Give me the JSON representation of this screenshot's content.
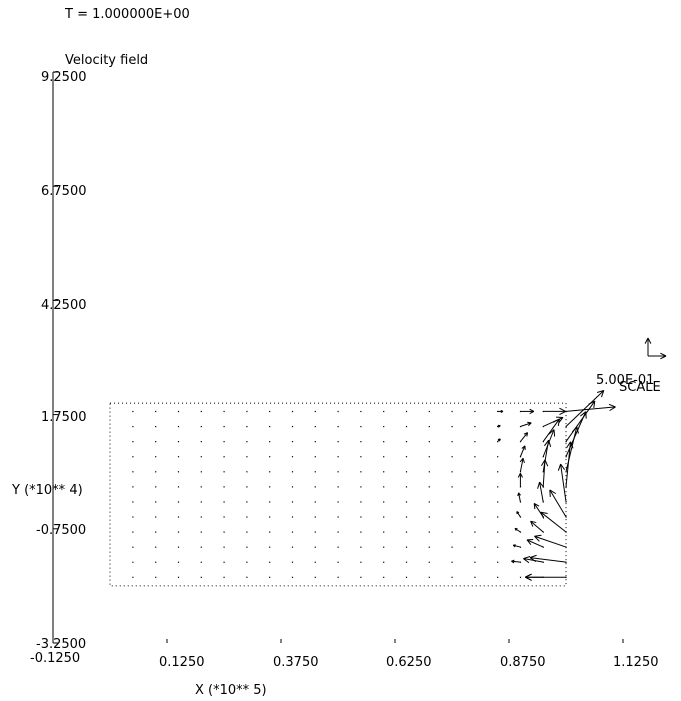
{
  "header": {
    "time_label": "T =  1.000000E+00"
  },
  "chart_data": {
    "type": "vector_field",
    "title": "Velocity field",
    "xlabel": "X (*10**  5)",
    "ylabel": "Y (*10**  4)",
    "xlim": [
      -0.125,
      1.125
    ],
    "ylim": [
      -3.25,
      9.25
    ],
    "x_ticks": [
      "-0.1250",
      "0.1250",
      "0.3750",
      "0.6250",
      "0.8750",
      "1.1250"
    ],
    "x_tick_values": [
      -0.125,
      0.125,
      0.375,
      0.625,
      0.875,
      1.125
    ],
    "y_ticks": [
      "9.2500",
      "6.7500",
      "4.2500",
      "1.7500",
      "-0.7500",
      "-3.2500"
    ],
    "y_tick_values": [
      9.25,
      6.75,
      4.25,
      1.75,
      -0.75,
      -3.25
    ],
    "domain": {
      "x": [
        0.0,
        1.0
      ],
      "y": [
        -2.0,
        2.0
      ]
    },
    "grid": {
      "nx": 20,
      "ny": 12,
      "x0": 0.05,
      "dx": 0.05,
      "y0": -1.81,
      "dy": 0.33
    },
    "scale": {
      "value_label": "5.00E-01",
      "label": "SCALE",
      "value": 0.5
    },
    "vectors": [
      {
        "x": 0.85,
        "y": 1.82,
        "u": 0.06,
        "v": 0.0
      },
      {
        "x": 0.9,
        "y": 1.82,
        "u": 0.15,
        "v": 0.0
      },
      {
        "x": 0.95,
        "y": 1.82,
        "u": 0.25,
        "v": 0.0
      },
      {
        "x": 1.0,
        "y": 1.82,
        "u": 0.55,
        "v": 0.05
      },
      {
        "x": 0.85,
        "y": 1.49,
        "u": 0.03,
        "v": 0.01
      },
      {
        "x": 0.9,
        "y": 1.49,
        "u": 0.12,
        "v": 0.04
      },
      {
        "x": 0.95,
        "y": 1.49,
        "u": 0.22,
        "v": 0.1
      },
      {
        "x": 1.0,
        "y": 1.49,
        "u": 0.42,
        "v": 0.4
      },
      {
        "x": 0.85,
        "y": 1.16,
        "u": 0.03,
        "v": 0.03
      },
      {
        "x": 0.9,
        "y": 1.16,
        "u": 0.08,
        "v": 0.1
      },
      {
        "x": 0.95,
        "y": 1.16,
        "u": 0.18,
        "v": 0.25
      },
      {
        "x": 1.0,
        "y": 1.16,
        "u": 0.32,
        "v": 0.45
      },
      {
        "x": 0.9,
        "y": 0.83,
        "u": 0.05,
        "v": 0.12
      },
      {
        "x": 0.95,
        "y": 0.83,
        "u": 0.12,
        "v": 0.3
      },
      {
        "x": 1.0,
        "y": 0.83,
        "u": 0.22,
        "v": 0.5
      },
      {
        "x": 0.9,
        "y": 0.5,
        "u": 0.03,
        "v": 0.15
      },
      {
        "x": 0.95,
        "y": 0.5,
        "u": 0.06,
        "v": 0.35
      },
      {
        "x": 1.0,
        "y": 0.5,
        "u": 0.12,
        "v": 0.5
      },
      {
        "x": 0.9,
        "y": 0.17,
        "u": 0.0,
        "v": 0.15
      },
      {
        "x": 0.95,
        "y": 0.17,
        "u": 0.02,
        "v": 0.3
      },
      {
        "x": 1.0,
        "y": 0.17,
        "u": 0.05,
        "v": 0.5
      },
      {
        "x": 0.9,
        "y": -0.16,
        "u": -0.02,
        "v": 0.1
      },
      {
        "x": 0.95,
        "y": -0.16,
        "u": -0.04,
        "v": 0.22
      },
      {
        "x": 1.0,
        "y": -0.16,
        "u": -0.06,
        "v": 0.42
      },
      {
        "x": 0.9,
        "y": -0.49,
        "u": -0.04,
        "v": 0.06
      },
      {
        "x": 0.95,
        "y": -0.49,
        "u": -0.1,
        "v": 0.15
      },
      {
        "x": 1.0,
        "y": -0.49,
        "u": -0.18,
        "v": 0.3
      },
      {
        "x": 0.9,
        "y": -0.82,
        "u": -0.06,
        "v": 0.04
      },
      {
        "x": 0.95,
        "y": -0.82,
        "u": -0.14,
        "v": 0.12
      },
      {
        "x": 1.0,
        "y": -0.82,
        "u": -0.28,
        "v": 0.22
      },
      {
        "x": 0.9,
        "y": -1.15,
        "u": -0.08,
        "v": 0.02
      },
      {
        "x": 0.95,
        "y": -1.15,
        "u": -0.18,
        "v": 0.08
      },
      {
        "x": 1.0,
        "y": -1.15,
        "u": -0.35,
        "v": 0.12
      },
      {
        "x": 0.9,
        "y": -1.48,
        "u": -0.1,
        "v": 0.01
      },
      {
        "x": 0.95,
        "y": -1.48,
        "u": -0.22,
        "v": 0.04
      },
      {
        "x": 1.0,
        "y": -1.48,
        "u": -0.4,
        "v": 0.05
      },
      {
        "x": 0.95,
        "y": -1.81,
        "u": -0.2,
        "v": 0.0
      },
      {
        "x": 1.0,
        "y": -1.81,
        "u": -0.45,
        "v": 0.0
      }
    ]
  }
}
